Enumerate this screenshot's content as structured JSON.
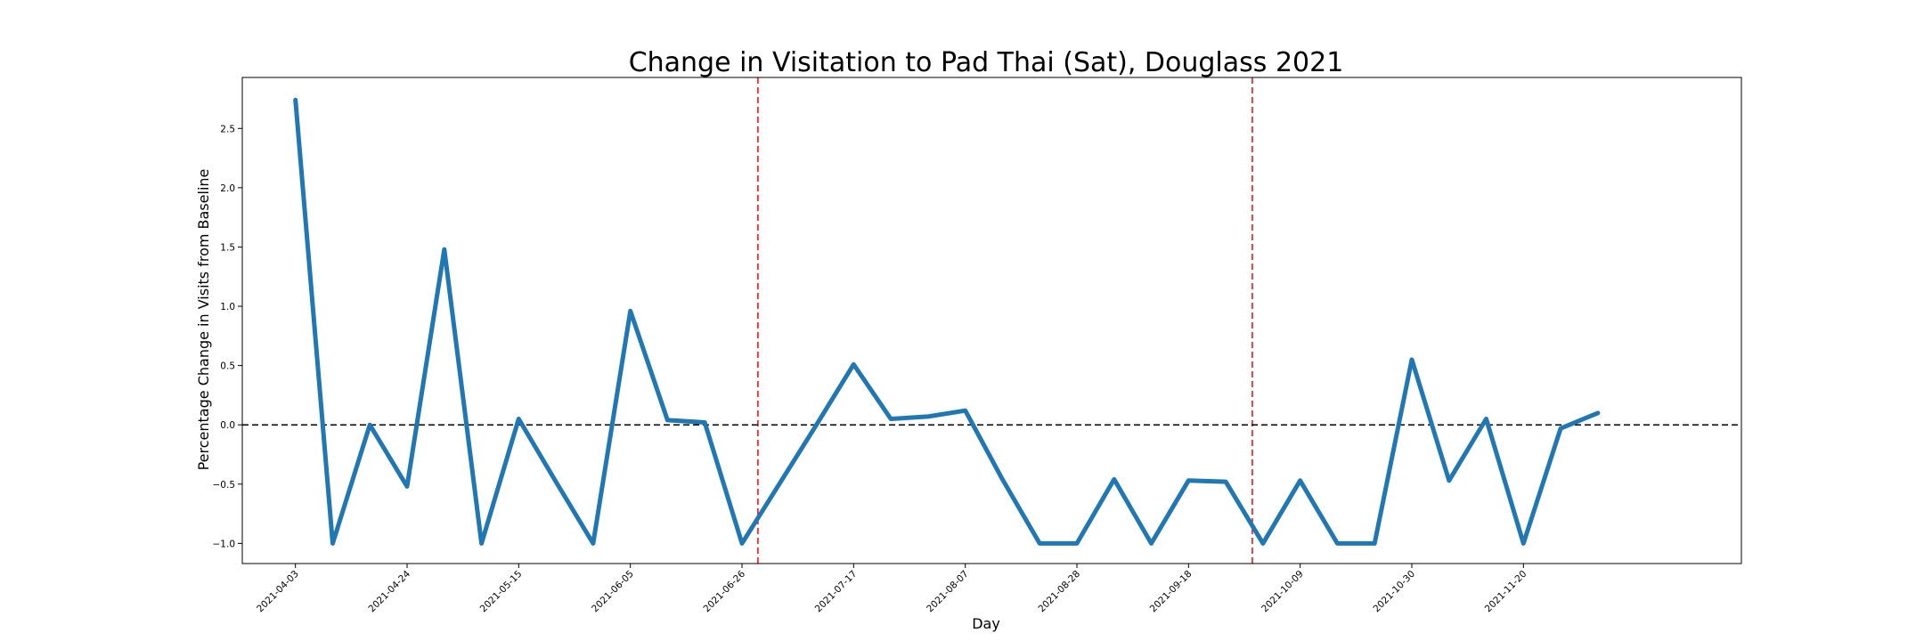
{
  "chart_data": {
    "type": "line",
    "title": "Change in Visitation to Pad Thai (Sat), Douglass 2021",
    "xlabel": "Day",
    "ylabel": "Percentage Change in Visits from Baseline",
    "ylim": [
      -1.17,
      2.93
    ],
    "yticks": [
      -1.0,
      -0.5,
      0.0,
      0.5,
      1.0,
      1.5,
      2.0,
      2.5
    ],
    "ytick_labels": [
      "−1.0",
      "−0.5",
      "0.0",
      "0.5",
      "1.0",
      "1.5",
      "2.0",
      "2.5"
    ],
    "xlim": [
      "2021-03-24",
      "2021-12-31"
    ],
    "xticks": [
      "2021-04-03",
      "2021-04-24",
      "2021-05-15",
      "2021-06-05",
      "2021-06-26",
      "2021-07-17",
      "2021-08-07",
      "2021-08-28",
      "2021-09-18",
      "2021-10-09",
      "2021-10-30",
      "2021-11-20"
    ],
    "x": [
      "2021-04-03",
      "2021-04-10",
      "2021-04-17",
      "2021-04-24",
      "2021-05-01",
      "2021-05-08",
      "2021-05-15",
      "2021-05-22",
      "2021-05-29",
      "2021-06-05",
      "2021-06-12",
      "2021-06-19",
      "2021-06-26",
      "2021-07-10",
      "2021-07-17",
      "2021-07-24",
      "2021-07-31",
      "2021-08-07",
      "2021-08-14",
      "2021-08-21",
      "2021-08-28",
      "2021-09-04",
      "2021-09-11",
      "2021-09-18",
      "2021-09-25",
      "2021-10-02",
      "2021-10-09",
      "2021-10-16",
      "2021-10-23",
      "2021-10-30",
      "2021-11-06",
      "2021-11-13",
      "2021-11-20",
      "2021-11-27",
      "2021-12-04"
    ],
    "series": [
      {
        "values": [
          2.74,
          -1.0,
          0.0,
          -0.52,
          1.48,
          -1.0,
          0.05,
          -0.48,
          -1.0,
          0.96,
          0.04,
          0.02,
          -1.0,
          0.0,
          0.51,
          0.05,
          0.07,
          0.12,
          -0.46,
          -1.0,
          -1.0,
          -0.46,
          -1.0,
          -0.47,
          -0.48,
          -1.0,
          -0.47,
          -1.0,
          -1.0,
          0.55,
          -0.47,
          0.05,
          -1.0,
          -0.03,
          0.1
        ],
        "color": "#1f77b4"
      }
    ],
    "hlines": [
      {
        "y": 0.0,
        "color": "#000000",
        "style": "dashed"
      }
    ],
    "vlines": [
      {
        "x": "2021-06-29",
        "color": "#ff0000",
        "style": "dashed"
      },
      {
        "x": "2021-09-30",
        "color": "#ff0000",
        "style": "dashed"
      }
    ],
    "grid": false,
    "legend": false
  }
}
